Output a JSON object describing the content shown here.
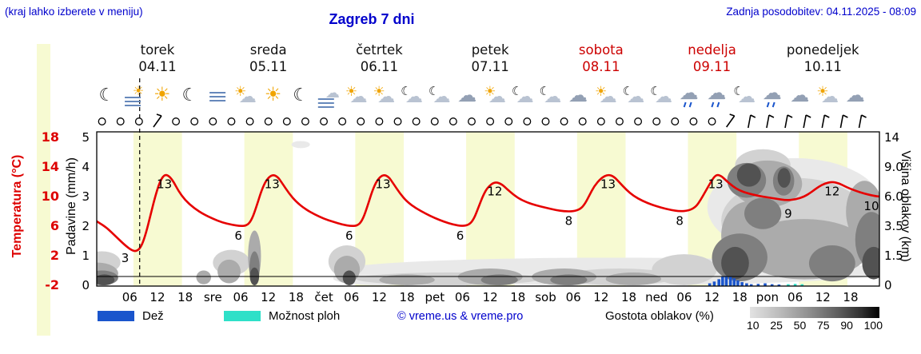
{
  "header": {
    "hint": "(kraj lahko izberete v meniju)",
    "title": "Zagreb 7 dni",
    "updated": "Zadnja posodobitev: 04.11.2025 - 08:09"
  },
  "axes": {
    "temp_label": "Temperatura (°C)",
    "precip_label": "Padavine (mm/h)",
    "cloud_label": "Višina oblakov (km)",
    "temp_ticks": [
      "18",
      "14",
      "10",
      "6",
      "2",
      "-2"
    ],
    "precip_ticks": [
      "5",
      "4",
      "3",
      "2",
      "1",
      "0"
    ],
    "cloud_ticks": [
      "14",
      "9.0",
      "6.0",
      "3.5",
      "1.5",
      "0"
    ]
  },
  "days": [
    {
      "name": "torek",
      "date": "04.11",
      "weekend": false
    },
    {
      "name": "sreda",
      "date": "05.11",
      "weekend": false
    },
    {
      "name": "četrtek",
      "date": "06.11",
      "weekend": false
    },
    {
      "name": "petek",
      "date": "07.11",
      "weekend": false
    },
    {
      "name": "sobota",
      "date": "08.11",
      "weekend": true
    },
    {
      "name": "nedelja",
      "date": "09.11",
      "weekend": true
    },
    {
      "name": "ponedeljek",
      "date": "10.11",
      "weekend": false
    }
  ],
  "legend": {
    "rain_label": "Dež",
    "showers_label": "Možnost ploh",
    "credit": "© vreme.us & vreme.pro",
    "cloud_density_label": "Gostota oblakov (%)",
    "density_ticks": [
      "10",
      "25",
      "50",
      "75",
      "90",
      "100"
    ]
  },
  "icon_glyphs": {
    "moon": "☾",
    "sun": "☀",
    "cloud": "☁"
  },
  "colors": {
    "blue": "#0000cc",
    "red": "#cc0000",
    "temp_line": "#e60000",
    "day_band": "#f7fad2",
    "rain": "#1a55cc",
    "showers": "#2ee0c8",
    "sun": "#f0a400",
    "cloud": "#b9c3d2",
    "cloud_dark": "#93a0b4",
    "fog": "#6688bb",
    "density": {
      "10": "#e9e9e9",
      "25": "#d2d2d2",
      "50": "#ababab",
      "75": "#7f7f7f",
      "90": "#525252",
      "100": "#262626"
    }
  },
  "chart_data": {
    "type": "line",
    "subtype": "meteogram",
    "time_unit": "hours from 2025-11-04 00:00",
    "x_domain": [
      -5,
      168.5
    ],
    "temp_axis_range": [
      -2,
      18
    ],
    "precip_axis_range": [
      0,
      5
    ],
    "cloud_axis_km": [
      0,
      1.5,
      3.5,
      6,
      9,
      14
    ],
    "now_t": 8.15,
    "daylight": [
      {
        "from": 6.8,
        "to": 17.3
      },
      {
        "from": 30.8,
        "to": 41.3
      },
      {
        "from": 54.8,
        "to": 65.3
      },
      {
        "from": 78.8,
        "to": 89.3
      },
      {
        "from": 102.8,
        "to": 113.3
      },
      {
        "from": 126.8,
        "to": 137.3
      },
      {
        "from": 150.8,
        "to": 161.3
      }
    ],
    "x_ticks": [
      {
        "t": 6,
        "label": "06"
      },
      {
        "t": 12,
        "label": "12"
      },
      {
        "t": 18,
        "label": "18"
      },
      {
        "t": 24,
        "label": "sre"
      },
      {
        "t": 30,
        "label": "06"
      },
      {
        "t": 36,
        "label": "12"
      },
      {
        "t": 42,
        "label": "18"
      },
      {
        "t": 48,
        "label": "čet"
      },
      {
        "t": 54,
        "label": "06"
      },
      {
        "t": 60,
        "label": "12"
      },
      {
        "t": 66,
        "label": "18"
      },
      {
        "t": 72,
        "label": "pet"
      },
      {
        "t": 78,
        "label": "06"
      },
      {
        "t": 84,
        "label": "12"
      },
      {
        "t": 90,
        "label": "18"
      },
      {
        "t": 96,
        "label": "sob"
      },
      {
        "t": 102,
        "label": "06"
      },
      {
        "t": 108,
        "label": "12"
      },
      {
        "t": 114,
        "label": "18"
      },
      {
        "t": 120,
        "label": "ned"
      },
      {
        "t": 126,
        "label": "06"
      },
      {
        "t": 132,
        "label": "12"
      },
      {
        "t": 138,
        "label": "18"
      },
      {
        "t": 144,
        "label": "pon"
      },
      {
        "t": 150,
        "label": "06"
      },
      {
        "t": 156,
        "label": "12"
      },
      {
        "t": 162,
        "label": "18"
      }
    ],
    "temperature": {
      "series": [
        [
          -5,
          8.2
        ],
        [
          -3,
          7.4
        ],
        [
          -1,
          6.6
        ],
        [
          1,
          5.8
        ],
        [
          3,
          4.6
        ],
        [
          5,
          3.4
        ],
        [
          6.5,
          2.7
        ],
        [
          7.5,
          2.6
        ],
        [
          8.5,
          3.2
        ],
        [
          9.5,
          5
        ],
        [
          10.5,
          7.5
        ],
        [
          11.5,
          10
        ],
        [
          12.5,
          12
        ],
        [
          13.5,
          13
        ],
        [
          14.5,
          12.8
        ],
        [
          15.5,
          12
        ],
        [
          16.5,
          10.8
        ],
        [
          18,
          9.5
        ],
        [
          20,
          8.4
        ],
        [
          22,
          7.6
        ],
        [
          24,
          7
        ],
        [
          26,
          6.5
        ],
        [
          28,
          6.2
        ],
        [
          30,
          6
        ],
        [
          31.5,
          6.1
        ],
        [
          32.5,
          7
        ],
        [
          33.5,
          8.8
        ],
        [
          34.5,
          10.8
        ],
        [
          35.5,
          12.2
        ],
        [
          36.8,
          13
        ],
        [
          38,
          12.7
        ],
        [
          39,
          11.8
        ],
        [
          40.5,
          10.4
        ],
        [
          42,
          9.3
        ],
        [
          44,
          8.3
        ],
        [
          46,
          7.6
        ],
        [
          48,
          7
        ],
        [
          50,
          6.6
        ],
        [
          52,
          6.2
        ],
        [
          54,
          6
        ],
        [
          55.5,
          6.1
        ],
        [
          56.5,
          7
        ],
        [
          57.5,
          8.8
        ],
        [
          58.5,
          10.8
        ],
        [
          59.5,
          12.2
        ],
        [
          60.8,
          13
        ],
        [
          62,
          12.7
        ],
        [
          63,
          11.8
        ],
        [
          64.5,
          10.4
        ],
        [
          66,
          9.3
        ],
        [
          68,
          8.4
        ],
        [
          70,
          7.7
        ],
        [
          72,
          7.1
        ],
        [
          74,
          6.6
        ],
        [
          76,
          6.2
        ],
        [
          78,
          6
        ],
        [
          79.5,
          6.2
        ],
        [
          80.5,
          7
        ],
        [
          81.5,
          8.6
        ],
        [
          82.5,
          10.2
        ],
        [
          83.5,
          11.3
        ],
        [
          85,
          12
        ],
        [
          86.5,
          11.7
        ],
        [
          88,
          10.8
        ],
        [
          90,
          9.8
        ],
        [
          92,
          9.2
        ],
        [
          94,
          8.8
        ],
        [
          96,
          8.5
        ],
        [
          98,
          8.2
        ],
        [
          100,
          8
        ],
        [
          102,
          8
        ],
        [
          103.5,
          8.3
        ],
        [
          104.5,
          9
        ],
        [
          105.5,
          10.2
        ],
        [
          106.5,
          11.4
        ],
        [
          108,
          12.5
        ],
        [
          109.5,
          13
        ],
        [
          110.8,
          12.7
        ],
        [
          112,
          11.9
        ],
        [
          113.5,
          10.9
        ],
        [
          115,
          10.1
        ],
        [
          117,
          9.4
        ],
        [
          119,
          8.9
        ],
        [
          121,
          8.5
        ],
        [
          123,
          8.2
        ],
        [
          125,
          8
        ],
        [
          127,
          8.1
        ],
        [
          128.5,
          8.6
        ],
        [
          129.5,
          9.5
        ],
        [
          130.5,
          10.6
        ],
        [
          131.5,
          11.7
        ],
        [
          132.8,
          13
        ],
        [
          134,
          12.8
        ],
        [
          135,
          12.2
        ],
        [
          136.5,
          11.4
        ],
        [
          138,
          10.8
        ],
        [
          140,
          10.4
        ],
        [
          142,
          10.1
        ],
        [
          144,
          9.9
        ],
        [
          146,
          9.7
        ],
        [
          148,
          9.5
        ],
        [
          150,
          9.6
        ],
        [
          152,
          10
        ],
        [
          153.5,
          10.6
        ],
        [
          155,
          11.3
        ],
        [
          156.5,
          11.8
        ],
        [
          158,
          12
        ],
        [
          159.5,
          11.8
        ],
        [
          161,
          11.3
        ],
        [
          163,
          10.8
        ],
        [
          165,
          10.4
        ],
        [
          167,
          10.1
        ],
        [
          168.3,
          10
        ]
      ],
      "labels": [
        {
          "t": 5,
          "v": 3
        },
        {
          "t": 13.5,
          "v": 13
        },
        {
          "t": 29.5,
          "v": 6
        },
        {
          "t": 36.8,
          "v": 13
        },
        {
          "t": 53.5,
          "v": 6
        },
        {
          "t": 60.8,
          "v": 13
        },
        {
          "t": 77.5,
          "v": 6
        },
        {
          "t": 85,
          "v": 12
        },
        {
          "t": 101,
          "v": 8
        },
        {
          "t": 109.5,
          "v": 13
        },
        {
          "t": 125,
          "v": 8
        },
        {
          "t": 132.8,
          "v": 13
        },
        {
          "t": 148.5,
          "v": 9
        },
        {
          "t": 158,
          "v": 12
        },
        {
          "t": 166.5,
          "v": 10
        }
      ]
    },
    "rain_mmh": [
      [
        131.5,
        0.08
      ],
      [
        132.5,
        0.14
      ],
      [
        133.5,
        0.22
      ],
      [
        134.3,
        0.3
      ],
      [
        135.1,
        0.33
      ],
      [
        136,
        0.3
      ],
      [
        136.8,
        0.25
      ],
      [
        137.6,
        0.18
      ],
      [
        138.5,
        0.12
      ],
      [
        139.5,
        0.08
      ],
      [
        140.5,
        0.05
      ],
      [
        142,
        0.06
      ],
      [
        143.5,
        0.08
      ],
      [
        145,
        0.05
      ],
      [
        146.5,
        0.04
      ]
    ],
    "showers_mmh": [
      [
        148.5,
        0.05
      ],
      [
        150,
        0.06
      ],
      [
        151.5,
        0.05
      ]
    ],
    "clouds": [
      {
        "t": 110,
        "km": 0.6,
        "rt": 60,
        "rkm": 0.8,
        "d": 10
      },
      {
        "t": 43,
        "km": 12.8,
        "rt": 2,
        "rkm": 0.6,
        "d": 10
      },
      {
        "t": 150,
        "km": 6,
        "rt": 19,
        "rkm": 4.5,
        "d": 10
      },
      {
        "t": 60,
        "km": 0.3,
        "rt": 10,
        "rkm": 0.4,
        "d": 10
      },
      {
        "t": 0,
        "km": 1.2,
        "rt": 4,
        "rkm": 0.6,
        "d": 25
      },
      {
        "t": 28,
        "km": 1.2,
        "rt": 4,
        "rkm": 0.7,
        "d": 25
      },
      {
        "t": 53,
        "km": 1.3,
        "rt": 4,
        "rkm": 0.9,
        "d": 25
      },
      {
        "t": 75,
        "km": 0.3,
        "rt": 20,
        "rkm": 0.35,
        "d": 25
      },
      {
        "t": 112,
        "km": 0.4,
        "rt": 12,
        "rkm": 0.45,
        "d": 25
      },
      {
        "t": 150,
        "km": 4.5,
        "rt": 16,
        "rkm": 3.4,
        "d": 25
      },
      {
        "t": 143,
        "km": 9.8,
        "rt": 6,
        "rkm": 2.2,
        "d": 25
      },
      {
        "t": 126,
        "km": 0.8,
        "rt": 7,
        "rkm": 0.8,
        "d": 25
      },
      {
        "t": -1,
        "km": 0.6,
        "rt": 4.5,
        "rkm": 0.55,
        "d": 50
      },
      {
        "t": 22,
        "km": 0.4,
        "rt": 1.6,
        "rkm": 0.35,
        "d": 50
      },
      {
        "t": 27.5,
        "km": 0.7,
        "rt": 2.5,
        "rkm": 0.6,
        "d": 50
      },
      {
        "t": 33,
        "km": 1.7,
        "rt": 1.4,
        "rkm": 1.5,
        "d": 50
      },
      {
        "t": 53,
        "km": 0.8,
        "rt": 2.8,
        "rkm": 0.7,
        "d": 50
      },
      {
        "t": 66,
        "km": 0.25,
        "rt": 6,
        "rkm": 0.3,
        "d": 50
      },
      {
        "t": 84,
        "km": 0.4,
        "rt": 7,
        "rkm": 0.45,
        "d": 50
      },
      {
        "t": 100,
        "km": 0.4,
        "rt": 7,
        "rkm": 0.45,
        "d": 50
      },
      {
        "t": 115,
        "km": 0.3,
        "rt": 6,
        "rkm": 0.35,
        "d": 50
      },
      {
        "t": 140,
        "km": 3.2,
        "rt": 6,
        "rkm": 2.4,
        "d": 50
      },
      {
        "t": 152,
        "km": 2.2,
        "rt": 14,
        "rkm": 1.9,
        "d": 50
      },
      {
        "t": 144,
        "km": 7.6,
        "rt": 7.5,
        "rkm": 2.5,
        "d": 50
      },
      {
        "t": 165,
        "km": 5,
        "rt": 4,
        "rkm": 2.6,
        "d": 50
      },
      {
        "t": 0,
        "km": 0.35,
        "rt": 3.5,
        "rkm": 0.4,
        "d": 75
      },
      {
        "t": 33,
        "km": 0.9,
        "rt": 1.1,
        "rkm": 0.9,
        "d": 75
      },
      {
        "t": 86,
        "km": 0.25,
        "rt": 4,
        "rkm": 0.3,
        "d": 75
      },
      {
        "t": 101,
        "km": 0.25,
        "rt": 4,
        "rkm": 0.3,
        "d": 75
      },
      {
        "t": 139.5,
        "km": 7.8,
        "rt": 4.2,
        "rkm": 1.9,
        "d": 75
      },
      {
        "t": 147.5,
        "km": 7.6,
        "rt": 2.3,
        "rkm": 1.5,
        "d": 75
      },
      {
        "t": 138,
        "km": 1.6,
        "rt": 6,
        "rkm": 1.4,
        "d": 75
      },
      {
        "t": 158,
        "km": 1.2,
        "rt": 5,
        "rkm": 1,
        "d": 75
      },
      {
        "t": 166.5,
        "km": 2.8,
        "rt": 3.5,
        "rkm": 1.9,
        "d": 75
      },
      {
        "t": 143,
        "km": 4.6,
        "rt": 4,
        "rkm": 1.3,
        "d": 75
      },
      {
        "t": 0.5,
        "km": 0.25,
        "rt": 2.2,
        "rkm": 0.3,
        "d": 90
      },
      {
        "t": 33,
        "km": 0.45,
        "rt": 1,
        "rkm": 0.45,
        "d": 90
      },
      {
        "t": 53.5,
        "km": 0.35,
        "rt": 1.4,
        "rkm": 0.4,
        "d": 90
      },
      {
        "t": 140,
        "km": 8.3,
        "rt": 2.6,
        "rkm": 1.3,
        "d": 90
      },
      {
        "t": 147.6,
        "km": 7.9,
        "rt": 1.4,
        "rkm": 1,
        "d": 90
      },
      {
        "t": 137,
        "km": 1.2,
        "rt": 3,
        "rkm": 0.9,
        "d": 90
      },
      {
        "t": 167,
        "km": 1.2,
        "rt": 2.5,
        "rkm": 0.9,
        "d": 90
      }
    ],
    "wind": {
      "start": -4,
      "step": 4,
      "pattern": "ccccaccccccccccccccccccccccccccccccabbbbbbbcc"
    },
    "icons": {
      "start": 1,
      "step": 6,
      "names": [
        "moon",
        "fog-sun",
        "sun",
        "moon",
        "fog",
        "partly",
        "sun",
        "moon",
        "fog-cloud",
        "partly",
        "partly",
        "moon-cloud",
        "moon-cloud",
        "cloud",
        "partly",
        "moon-cloud",
        "moon-cloud",
        "cloud",
        "partly",
        "moon-cloud",
        "moon-cloud",
        "rain",
        "rain",
        "moon-cloud",
        "rain",
        "cloud",
        "partly",
        "cloud"
      ]
    }
  }
}
